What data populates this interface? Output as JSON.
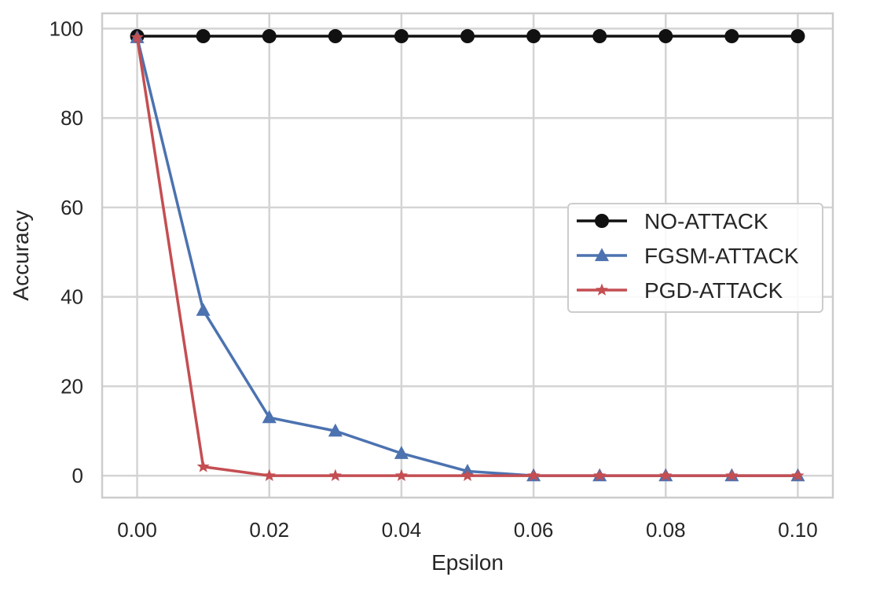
{
  "chart_data": {
    "type": "line",
    "title": "",
    "xlabel": "Epsilon",
    "ylabel": "Accuracy",
    "xlim": [
      -0.0053,
      0.1053
    ],
    "ylim": [
      -4.9,
      103.4
    ],
    "xticks": [
      0.0,
      0.02,
      0.04,
      0.06,
      0.08,
      0.1
    ],
    "xtick_labels": [
      "0.00",
      "0.02",
      "0.04",
      "0.06",
      "0.08",
      "0.10"
    ],
    "yticks": [
      0,
      20,
      40,
      60,
      80,
      100
    ],
    "ytick_labels": [
      "0",
      "20",
      "40",
      "60",
      "80",
      "100"
    ],
    "grid": true,
    "legend_position": "center-right",
    "x": [
      0.0,
      0.01,
      0.02,
      0.03,
      0.04,
      0.05,
      0.06,
      0.07,
      0.08,
      0.09,
      0.1
    ],
    "series": [
      {
        "name": "NO-ATTACK",
        "color": "#111111",
        "marker": "circle",
        "values": [
          98.3,
          98.3,
          98.3,
          98.3,
          98.3,
          98.3,
          98.3,
          98.3,
          98.3,
          98.3,
          98.3
        ]
      },
      {
        "name": "FGSM-ATTACK",
        "color": "#4c72b0",
        "marker": "triangle",
        "values": [
          98.0,
          37.0,
          13.0,
          10.0,
          5.0,
          1.0,
          0.0,
          0.0,
          0.0,
          0.0,
          0.0
        ]
      },
      {
        "name": "PGD-ATTACK",
        "color": "#c44e52",
        "marker": "star",
        "values": [
          98.0,
          2.0,
          0.0,
          0.0,
          0.0,
          0.0,
          0.0,
          0.0,
          0.0,
          0.0,
          0.0
        ]
      }
    ]
  }
}
